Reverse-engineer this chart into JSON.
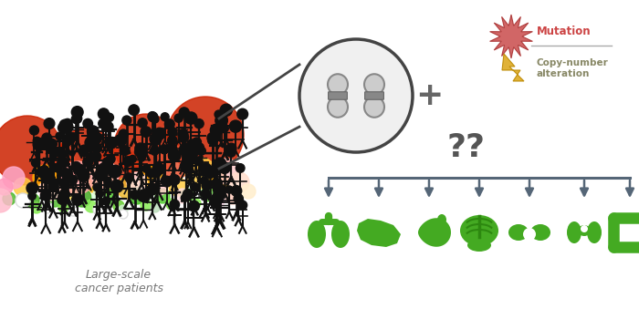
{
  "bg_color": "#ffffff",
  "people_color": "#111111",
  "lens_color": "#444444",
  "lens_fill": "#ffffff",
  "chromosome_color": "#cccccc",
  "chromosome_outline": "#888888",
  "plus_color": "#666666",
  "mutation_star_color": "#cc5555",
  "mutation_star_edge": "#aa3333",
  "mutation_text_color": "#cc4444",
  "cna_bolt_color": "#ddaa22",
  "cna_bolt_edge": "#bb8800",
  "cna_text_color": "#888866",
  "question_color": "#555555",
  "arrow_color": "#556677",
  "organ_color": "#44aa22",
  "label_color": "#777777",
  "label_text": "Large-scale\ncancer patients",
  "bubble_data": [
    [
      30,
      165,
      38,
      "#cc2200"
    ],
    [
      95,
      170,
      30,
      "#cc2200"
    ],
    [
      160,
      160,
      35,
      "#cc2200"
    ],
    [
      225,
      148,
      42,
      "#cc2200"
    ],
    [
      68,
      188,
      20,
      "#dd4422"
    ],
    [
      130,
      183,
      22,
      "#dd3311"
    ],
    [
      192,
      178,
      18,
      "#ee5533"
    ],
    [
      50,
      195,
      14,
      "#ffaa00"
    ],
    [
      110,
      198,
      16,
      "#ffbb11"
    ],
    [
      165,
      195,
      13,
      "#ffaa00"
    ],
    [
      220,
      190,
      17,
      "#ffcc44"
    ],
    [
      25,
      205,
      10,
      "#ffcc44"
    ],
    [
      75,
      208,
      11,
      "#ffdd55"
    ],
    [
      140,
      206,
      12,
      "#eebb33"
    ],
    [
      195,
      205,
      10,
      "#ffcc44"
    ],
    [
      240,
      200,
      11,
      "#ffaa00"
    ],
    [
      35,
      220,
      8,
      "#44aa22"
    ],
    [
      60,
      218,
      9,
      "#55bb33"
    ],
    [
      90,
      217,
      10,
      "#44aa22"
    ],
    [
      120,
      216,
      8,
      "#55cc33"
    ],
    [
      150,
      215,
      9,
      "#44bb22"
    ],
    [
      178,
      215,
      8,
      "#55cc33"
    ],
    [
      205,
      214,
      7,
      "#44aa22"
    ],
    [
      228,
      213,
      8,
      "#66cc44"
    ],
    [
      10,
      218,
      7,
      "#55bb33"
    ],
    [
      40,
      228,
      6,
      "#88ee55"
    ],
    [
      70,
      227,
      6,
      "#77dd44"
    ],
    [
      100,
      226,
      7,
      "#88ee55"
    ],
    [
      130,
      226,
      6,
      "#66cc33"
    ],
    [
      160,
      225,
      6,
      "#88ee55"
    ],
    [
      188,
      224,
      6,
      "#77dd44"
    ],
    [
      215,
      223,
      5,
      "#88ee55"
    ],
    [
      55,
      208,
      12,
      "#ffcccc"
    ],
    [
      85,
      195,
      18,
      "#ffaaaa"
    ],
    [
      115,
      192,
      15,
      "#ffbbbb"
    ],
    [
      150,
      200,
      11,
      "#ffdddd"
    ],
    [
      175,
      205,
      9,
      "#ffcccc"
    ],
    [
      200,
      215,
      8,
      "#ffdddd"
    ],
    [
      15,
      195,
      12,
      "#ffaacc"
    ],
    [
      5,
      205,
      9,
      "#ff99bb"
    ],
    [
      0,
      220,
      13,
      "#ffbbcc"
    ],
    [
      248,
      188,
      14,
      "#ffcccc"
    ],
    [
      262,
      200,
      11,
      "#ffddcc"
    ],
    [
      255,
      215,
      9,
      "#ffccbb"
    ],
    [
      238,
      220,
      8,
      "#ffddee"
    ],
    [
      272,
      210,
      8,
      "#ffeecc"
    ],
    [
      108,
      215,
      7,
      "#ddffdd"
    ],
    [
      135,
      230,
      5,
      "#cceecc"
    ],
    [
      170,
      228,
      5,
      "#bbddbb"
    ]
  ]
}
